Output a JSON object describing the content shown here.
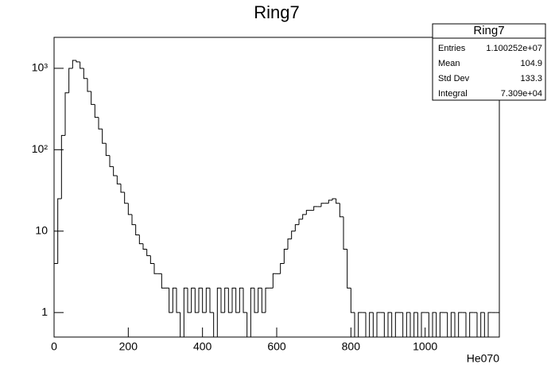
{
  "chart_data": {
    "type": "histogram",
    "title": "Ring7",
    "x_label": "He070",
    "log_y": true,
    "color": "#000000",
    "bins": [
      0,
      10,
      20,
      30,
      40,
      50,
      60,
      70,
      80,
      90,
      100,
      110,
      120,
      130,
      140,
      150,
      160,
      170,
      180,
      190,
      200,
      210,
      220,
      230,
      240,
      250,
      260,
      270,
      280,
      290,
      300,
      310,
      320,
      330,
      340,
      350,
      360,
      370,
      380,
      390,
      400,
      410,
      420,
      430,
      440,
      450,
      460,
      470,
      480,
      490,
      500,
      510,
      520,
      530,
      540,
      550,
      560,
      570,
      580,
      590,
      600,
      610,
      620,
      630,
      640,
      650,
      660,
      670,
      680,
      690,
      700,
      710,
      720,
      730,
      740,
      750,
      760,
      770,
      780,
      790,
      800,
      810,
      820,
      830,
      840,
      850,
      860,
      870,
      880,
      890,
      900,
      910,
      920,
      930,
      940,
      950,
      960,
      970,
      980,
      990,
      1000,
      1010,
      1020,
      1030,
      1040,
      1050,
      1060,
      1070,
      1080,
      1090,
      1100,
      1110,
      1120,
      1130,
      1140,
      1150,
      1160,
      1170,
      1180,
      1190,
      1200
    ],
    "values": [
      4,
      25,
      150,
      500,
      1000,
      1250,
      1200,
      1000,
      750,
      520,
      360,
      250,
      180,
      120,
      85,
      62,
      48,
      38,
      30,
      22,
      16,
      12,
      9,
      7,
      6,
      5,
      4,
      3,
      3,
      2,
      2,
      1,
      2,
      1,
      0,
      2,
      1,
      2,
      1,
      2,
      1,
      2,
      1,
      0,
      2,
      1,
      2,
      1,
      2,
      1,
      2,
      1,
      0,
      2,
      1,
      2,
      1,
      2,
      2,
      3,
      3,
      4,
      6,
      8,
      10,
      12,
      14,
      16,
      18,
      18,
      20,
      20,
      22,
      22,
      24,
      25,
      22,
      15,
      6,
      2,
      1,
      0,
      1,
      1,
      0,
      1,
      0,
      1,
      1,
      0,
      1,
      0,
      1,
      1,
      0,
      1,
      0,
      1,
      0,
      1,
      1,
      0,
      1,
      0,
      1,
      1,
      0,
      1,
      0,
      1,
      1,
      0,
      1,
      1,
      0,
      1,
      0,
      1,
      1,
      1
    ],
    "xlim": [
      0,
      1200
    ],
    "xticks": [
      0,
      200,
      400,
      600,
      800,
      1000
    ],
    "ylim": [
      0.5,
      2400
    ],
    "yticks": [
      1,
      10,
      {
        "value": 100,
        "label": "10²"
      },
      {
        "value": 1000,
        "label": "10³"
      }
    ],
    "stats": {
      "title": "Ring7",
      "rows": [
        [
          "Entries",
          "1.100252e+07"
        ],
        [
          "Mean",
          "104.9"
        ],
        [
          "Std Dev",
          "133.3"
        ],
        [
          "Integral",
          "7.309e+04"
        ]
      ]
    }
  }
}
